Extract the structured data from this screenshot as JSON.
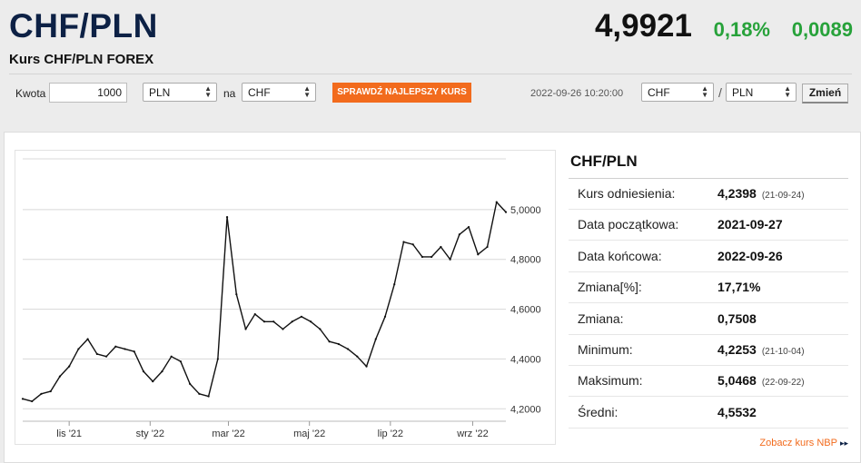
{
  "header": {
    "title": "CHF/PLN",
    "subtitle": "Kurs CHF/PLN FOREX",
    "price": "4,9921",
    "change_pct": "0,18%",
    "change_abs": "0,0089"
  },
  "converter": {
    "amount_label": "Kwota",
    "amount_value": "1000",
    "from_currency": "PLN",
    "on_label": "na",
    "to_currency": "CHF",
    "check_button": "SPRAWDŹ NAJLEPSZY KURS",
    "timestamp": "2022-09-26 10:20:00",
    "pair_base": "CHF",
    "pair_separator": "/",
    "pair_quote": "PLN",
    "change_button": "Zmień"
  },
  "colors": {
    "accent": "#f26b1d",
    "positive": "#27a23a",
    "title": "#0d2145"
  },
  "chart_data": {
    "type": "line",
    "x": [
      "2021-09-27",
      "2021-10-04",
      "2021-10-11",
      "2021-10-18",
      "2021-10-25",
      "2021-11-01",
      "2021-11-08",
      "2021-11-15",
      "2021-11-22",
      "2021-11-29",
      "2021-12-06",
      "2021-12-13",
      "2021-12-20",
      "2021-12-27",
      "2022-01-03",
      "2022-01-10",
      "2022-01-17",
      "2022-01-24",
      "2022-01-31",
      "2022-02-07",
      "2022-02-14",
      "2022-02-21",
      "2022-02-28",
      "2022-03-07",
      "2022-03-14",
      "2022-03-21",
      "2022-03-28",
      "2022-04-04",
      "2022-04-11",
      "2022-04-18",
      "2022-04-25",
      "2022-05-02",
      "2022-05-09",
      "2022-05-16",
      "2022-05-23",
      "2022-05-30",
      "2022-06-06",
      "2022-06-13",
      "2022-06-20",
      "2022-06-27",
      "2022-07-04",
      "2022-07-11",
      "2022-07-18",
      "2022-07-25",
      "2022-08-01",
      "2022-08-08",
      "2022-08-15",
      "2022-08-22",
      "2022-08-29",
      "2022-09-05",
      "2022-09-12",
      "2022-09-19",
      "2022-09-26"
    ],
    "values": [
      4.24,
      4.23,
      4.26,
      4.27,
      4.33,
      4.37,
      4.44,
      4.48,
      4.42,
      4.41,
      4.45,
      4.44,
      4.43,
      4.35,
      4.31,
      4.35,
      4.41,
      4.39,
      4.3,
      4.26,
      4.25,
      4.4,
      4.97,
      4.66,
      4.52,
      4.58,
      4.55,
      4.55,
      4.52,
      4.55,
      4.57,
      4.55,
      4.52,
      4.47,
      4.46,
      4.44,
      4.41,
      4.37,
      4.48,
      4.57,
      4.7,
      4.87,
      4.86,
      4.81,
      4.81,
      4.85,
      4.8,
      4.9,
      4.93,
      4.82,
      4.85,
      5.03,
      4.99
    ],
    "xticks": [
      "lis '21",
      "sty '22",
      "mar '22",
      "maj '22",
      "lip '22",
      "wrz '22"
    ],
    "yticks": [
      "4,2000",
      "4,4000",
      "4,6000",
      "4,8000",
      "5,0000"
    ],
    "ylim": [
      4.15,
      5.2
    ],
    "grid": true,
    "color": "#111111"
  },
  "stats": {
    "title": "CHF/PLN",
    "rows": [
      {
        "label": "Kurs odniesienia:",
        "value": "4,2398",
        "date": "(21-09-24)"
      },
      {
        "label": "Data początkowa:",
        "value": "2021-09-27",
        "date": ""
      },
      {
        "label": "Data końcowa:",
        "value": "2022-09-26",
        "date": ""
      },
      {
        "label": "Zmiana[%]:",
        "value": "17,71%",
        "date": ""
      },
      {
        "label": "Zmiana:",
        "value": "0,7508",
        "date": ""
      },
      {
        "label": "Minimum:",
        "value": "4,2253",
        "date": "(21-10-04)"
      },
      {
        "label": "Maksimum:",
        "value": "5,0468",
        "date": "(22-09-22)"
      },
      {
        "label": "Średni:",
        "value": "4,5532",
        "date": ""
      }
    ],
    "nbp_link": "Zobacz kurs NBP"
  }
}
